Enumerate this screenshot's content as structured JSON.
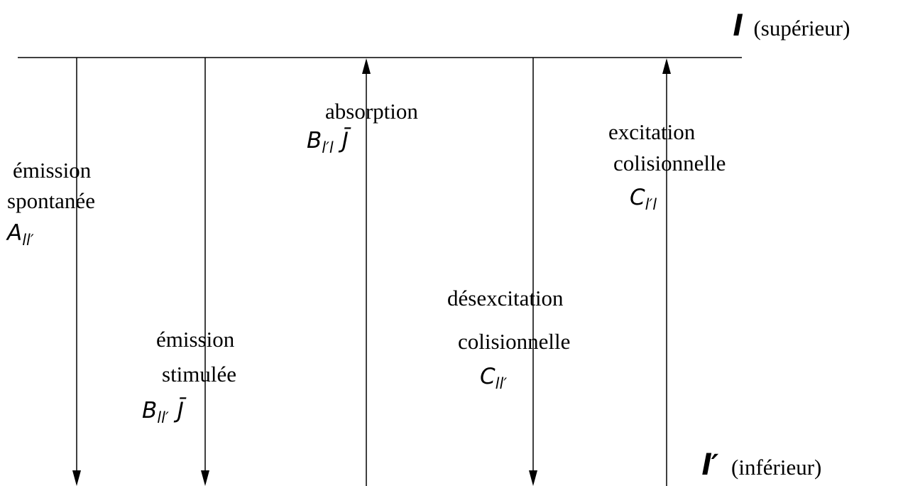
{
  "levels": {
    "upper": {
      "symbol": "l",
      "label": "(supérieur)"
    },
    "lower": {
      "symbol": "l′",
      "label": "(inférieur)"
    }
  },
  "transitions": [
    {
      "lines": [
        "émission",
        "spontanée"
      ],
      "symbol": "A",
      "subscript": "ll′"
    },
    {
      "lines": [
        "émission",
        "stimulée"
      ],
      "symbol": "B",
      "subscript": "ll′",
      "factor": "J̄"
    },
    {
      "lines": [
        "absorption"
      ],
      "symbol": "B",
      "subscript": "l′l",
      "factor": "J̄"
    },
    {
      "lines": [
        "désexcitation",
        "colisionnelle"
      ],
      "symbol": "C",
      "subscript": "ll′"
    },
    {
      "lines": [
        "excitation",
        "colisionnelle"
      ],
      "symbol": "C",
      "subscript": "l′l"
    }
  ]
}
